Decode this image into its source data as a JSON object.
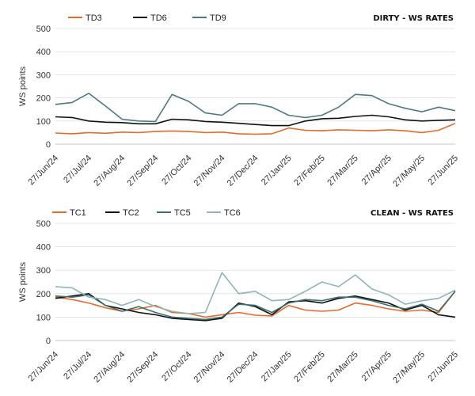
{
  "chart_data": [
    {
      "type": "line",
      "title": "DIRTY - WS RATES",
      "ylabel": "WS points",
      "xlabel": "",
      "ylim": [
        0,
        500
      ],
      "yticks": [
        0,
        100,
        200,
        300,
        400,
        500
      ],
      "grid": true,
      "legend": "top-left",
      "xticks": [
        "27/Jun/24",
        "27/Jul/24",
        "27/Aug/24",
        "27/Sep/24",
        "27/Oct/24",
        "27/Nov/24",
        "27/Dec/24",
        "27/Jan/25",
        "27/Feb/25",
        "27/Mar/25",
        "27/Apr/25",
        "27/May/25",
        "27/Jun/25"
      ],
      "x": [
        "27/Jun/24",
        "12/Jul/24",
        "27/Jul/24",
        "12/Aug/24",
        "27/Aug/24",
        "12/Sep/24",
        "27/Sep/24",
        "12/Oct/24",
        "27/Oct/24",
        "12/Nov/24",
        "27/Nov/24",
        "12/Dec/24",
        "27/Dec/24",
        "12/Jan/25",
        "27/Jan/25",
        "12/Feb/25",
        "27/Feb/25",
        "12/Mar/25",
        "27/Mar/25",
        "12/Apr/25",
        "27/Apr/25",
        "12/May/25",
        "27/May/25",
        "12/Jun/25",
        "27/Jun/25"
      ],
      "series": [
        {
          "name": "TD3",
          "color": "#e8692c",
          "values": [
            48,
            45,
            50,
            47,
            52,
            50,
            55,
            57,
            55,
            50,
            52,
            45,
            43,
            45,
            70,
            60,
            58,
            62,
            60,
            58,
            62,
            58,
            50,
            60,
            90
          ]
        },
        {
          "name": "TD6",
          "color": "#111111",
          "values": [
            118,
            115,
            100,
            95,
            93,
            88,
            88,
            108,
            105,
            98,
            95,
            90,
            85,
            80,
            80,
            100,
            110,
            112,
            120,
            125,
            118,
            105,
            100,
            103,
            105
          ]
        },
        {
          "name": "TD9",
          "color": "#4e7a7d",
          "values": [
            172,
            180,
            220,
            165,
            108,
            100,
            98,
            215,
            185,
            135,
            125,
            175,
            175,
            160,
            125,
            115,
            125,
            160,
            215,
            210,
            175,
            155,
            140,
            160,
            145
          ]
        }
      ]
    },
    {
      "type": "line",
      "title": "CLEAN - WS RATES",
      "ylabel": "WS points",
      "xlabel": "",
      "ylim": [
        0,
        500
      ],
      "yticks": [
        0,
        100,
        200,
        300,
        400,
        500
      ],
      "grid": true,
      "legend": "top-left",
      "xticks": [
        "27/Jun/24",
        "27/Jul/24",
        "27/Aug/24",
        "27/Sep/24",
        "27/Oct/24",
        "27/Nov/24",
        "27/Dec/24",
        "27/Jan/25",
        "27/Feb/25",
        "27/Mar/25",
        "27/Apr/25",
        "27/May/25",
        "27/Jun/25"
      ],
      "x": [
        "27/Jun/24",
        "12/Jul/24",
        "27/Jul/24",
        "12/Aug/24",
        "27/Aug/24",
        "12/Sep/24",
        "27/Sep/24",
        "12/Oct/24",
        "27/Oct/24",
        "12/Nov/24",
        "27/Nov/24",
        "12/Dec/24",
        "27/Dec/24",
        "12/Jan/25",
        "27/Jan/25",
        "12/Feb/25",
        "27/Feb/25",
        "12/Mar/25",
        "27/Mar/25",
        "12/Apr/25",
        "27/Apr/25",
        "12/May/25",
        "27/May/25",
        "12/Jun/25",
        "27/Jun/25"
      ],
      "series": [
        {
          "name": "TC1",
          "color": "#e8692c",
          "values": [
            185,
            175,
            160,
            140,
            125,
            135,
            150,
            120,
            115,
            100,
            110,
            120,
            108,
            105,
            150,
            130,
            125,
            130,
            160,
            150,
            135,
            125,
            130,
            120,
            210
          ]
        },
        {
          "name": "TC2",
          "color": "#111111",
          "values": [
            180,
            190,
            200,
            150,
            135,
            120,
            110,
            95,
            90,
            85,
            95,
            160,
            145,
            110,
            165,
            170,
            160,
            180,
            190,
            175,
            160,
            130,
            150,
            110,
            100
          ]
        },
        {
          "name": "TC5",
          "color": "#3d6e70",
          "values": [
            190,
            185,
            195,
            150,
            125,
            145,
            120,
            100,
            95,
            90,
            100,
            155,
            150,
            120,
            160,
            175,
            170,
            185,
            185,
            170,
            150,
            135,
            155,
            125,
            210
          ]
        },
        {
          "name": "TC6",
          "color": "#8fb5b7",
          "values": [
            230,
            225,
            185,
            175,
            150,
            175,
            145,
            125,
            115,
            120,
            290,
            200,
            210,
            170,
            175,
            210,
            250,
            230,
            280,
            220,
            195,
            155,
            170,
            180,
            215
          ]
        }
      ]
    }
  ]
}
